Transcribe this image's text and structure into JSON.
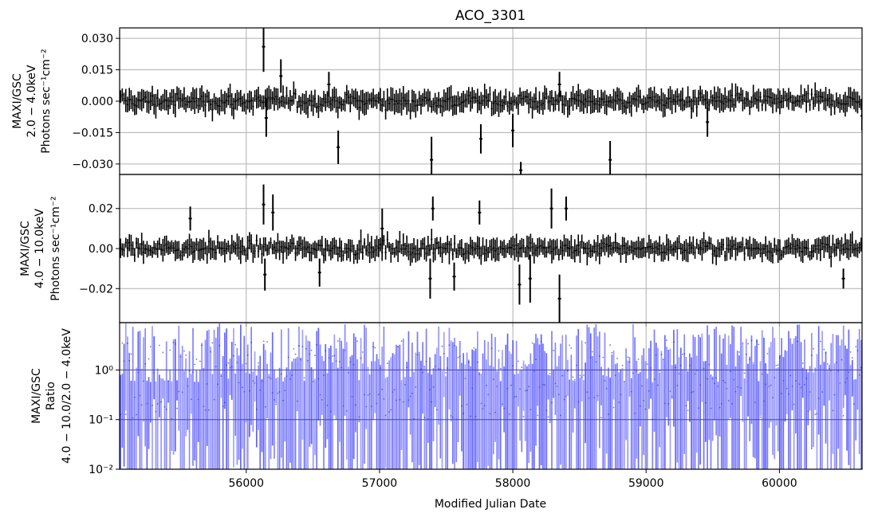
{
  "title": "ACO_3301",
  "xlabel": "Modified Julian Date",
  "chart_data": [
    {
      "type": "line",
      "panel": "soft",
      "ylabel_lines": [
        "MAXI/GSC",
        "2.0 − 4.0keV",
        "Photons sec⁻¹cm⁻²"
      ],
      "xlim": [
        55050,
        60620
      ],
      "ylim": [
        -0.035,
        0.035
      ],
      "yticks": [
        -0.03,
        -0.015,
        0.0,
        0.015,
        0.03
      ],
      "ytick_labels": [
        "−0.030",
        "−0.015",
        "0.000",
        "0.015",
        "0.030"
      ],
      "grid": true,
      "color": "#000000",
      "spikes": [
        {
          "x": 56130,
          "y": 0.026,
          "err": 0.012
        },
        {
          "x": 56150,
          "y": -0.008,
          "err": 0.009
        },
        {
          "x": 56260,
          "y": 0.012,
          "err": 0.008
        },
        {
          "x": 56690,
          "y": -0.022,
          "err": 0.008
        },
        {
          "x": 56620,
          "y": 0.008,
          "err": 0.006
        },
        {
          "x": 57390,
          "y": -0.028,
          "err": 0.011
        },
        {
          "x": 57760,
          "y": -0.018,
          "err": 0.007
        },
        {
          "x": 58000,
          "y": -0.014,
          "err": 0.008
        },
        {
          "x": 58060,
          "y": -0.033,
          "err": 0.004
        },
        {
          "x": 58350,
          "y": 0.008,
          "err": 0.006
        },
        {
          "x": 58730,
          "y": -0.028,
          "err": 0.009
        },
        {
          "x": 59460,
          "y": -0.01,
          "err": 0.007
        },
        {
          "x": 60620,
          "y": -0.007,
          "err": 0.007
        }
      ]
    },
    {
      "type": "line",
      "panel": "hard",
      "ylabel_lines": [
        "MAXI/GSC",
        "4.0 − 10.0keV",
        "Photons sec⁻¹cm⁻²"
      ],
      "xlim": [
        55050,
        60620
      ],
      "ylim": [
        -0.037,
        0.037
      ],
      "yticks": [
        -0.02,
        0.0,
        0.02
      ],
      "ytick_labels": [
        "−0.02",
        "0.00",
        "0.02"
      ],
      "grid": true,
      "color": "#000000",
      "spikes": [
        {
          "x": 55580,
          "y": 0.015,
          "err": 0.006
        },
        {
          "x": 56130,
          "y": 0.022,
          "err": 0.01
        },
        {
          "x": 56140,
          "y": -0.013,
          "err": 0.008
        },
        {
          "x": 56200,
          "y": 0.018,
          "err": 0.009
        },
        {
          "x": 56550,
          "y": -0.012,
          "err": 0.007
        },
        {
          "x": 57020,
          "y": 0.01,
          "err": 0.01
        },
        {
          "x": 57400,
          "y": 0.02,
          "err": 0.006
        },
        {
          "x": 57380,
          "y": -0.015,
          "err": 0.01
        },
        {
          "x": 57560,
          "y": -0.014,
          "err": 0.007
        },
        {
          "x": 57750,
          "y": 0.018,
          "err": 0.006
        },
        {
          "x": 58050,
          "y": -0.018,
          "err": 0.01
        },
        {
          "x": 58130,
          "y": -0.015,
          "err": 0.012
        },
        {
          "x": 58290,
          "y": 0.02,
          "err": 0.01
        },
        {
          "x": 58350,
          "y": -0.025,
          "err": 0.012
        },
        {
          "x": 58400,
          "y": 0.02,
          "err": 0.006
        },
        {
          "x": 60480,
          "y": -0.015,
          "err": 0.005
        }
      ]
    },
    {
      "type": "scatter",
      "panel": "ratio",
      "ylabel_lines": [
        "MAXI/GSC",
        "Ratio",
        "4.0 − 10.0/2.0 − 4.0keV"
      ],
      "xlim": [
        55050,
        60620
      ],
      "ylim": [
        0.01,
        9
      ],
      "yscale": "log",
      "yticks": [
        0.01,
        0.1,
        1
      ],
      "ytick_labels": [
        "10⁻²",
        "10⁻¹",
        "10⁰"
      ],
      "hlines": [
        1,
        0.1
      ],
      "grid": true,
      "color": "#3333ff"
    }
  ],
  "xticks": [
    56000,
    57000,
    58000,
    59000,
    60000
  ],
  "xtick_labels": [
    "56000",
    "57000",
    "58000",
    "59000",
    "60000"
  ],
  "n_bins": 420,
  "soft_noise": 0.004,
  "hard_noise": 0.004
}
